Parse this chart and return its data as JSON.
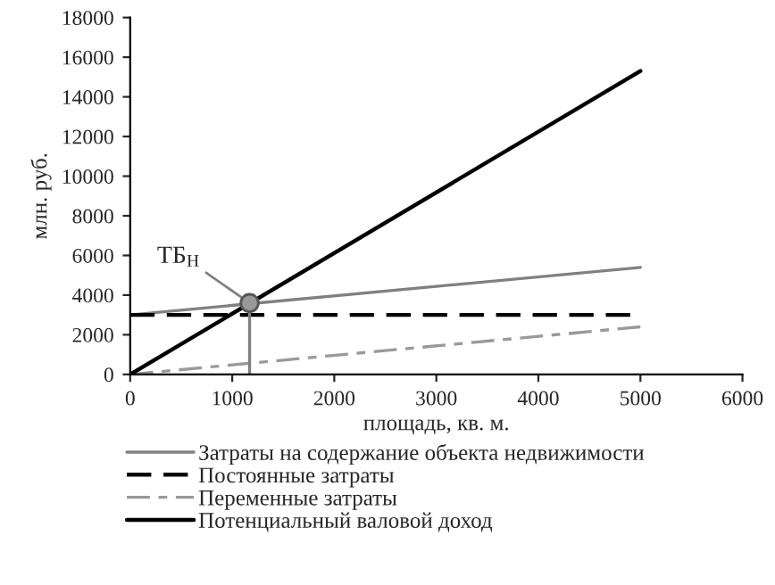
{
  "chart_data": {
    "type": "line",
    "xlabel": "площадь, кв. м.",
    "ylabel": "млн. руб.",
    "xlim": [
      0,
      6000
    ],
    "xticks": [
      0,
      1000,
      2000,
      3000,
      4000,
      5000,
      6000
    ],
    "ylim": [
      0,
      18000
    ],
    "yticks": [
      0,
      2000,
      4000,
      6000,
      8000,
      10000,
      12000,
      14000,
      16000,
      18000
    ],
    "grid": false,
    "legend": "bottom",
    "marker": "none",
    "series": [
      {
        "name": "Затраты на содержание объекта недвижимости",
        "color": "#808080",
        "x": [
          0,
          5000
        ],
        "values": [
          3000,
          5400
        ],
        "line_style": "solid"
      },
      {
        "name": "Постоянные затраты",
        "color": "#000000",
        "x": [
          0,
          4900
        ],
        "values": [
          3000,
          3000
        ],
        "line_style": "dashed"
      },
      {
        "name": "Переменные затраты",
        "color": "#999999",
        "x": [
          0,
          5000
        ],
        "values": [
          0,
          2400
        ],
        "line_style": "dashed"
      },
      {
        "name": "Потенциальный валовой доход",
        "color": "#000000",
        "x": [
          0,
          5000
        ],
        "values": [
          0,
          15300
        ],
        "line_style": "solid"
      },
      {
        "color": "#808080",
        "x": [
          1170,
          1170
        ],
        "values": [
          0,
          3600
        ],
        "line_style": "solid"
      },
      {
        "type": "scatter",
        "color": "#999999",
        "x": [
          1170
        ],
        "values": [
          3600
        ],
        "marker": "circle"
      }
    ],
    "annotations": [
      {
        "text": "ТБ$_{Н}$",
        "x": 1170,
        "y": 3600
      }
    ]
  }
}
